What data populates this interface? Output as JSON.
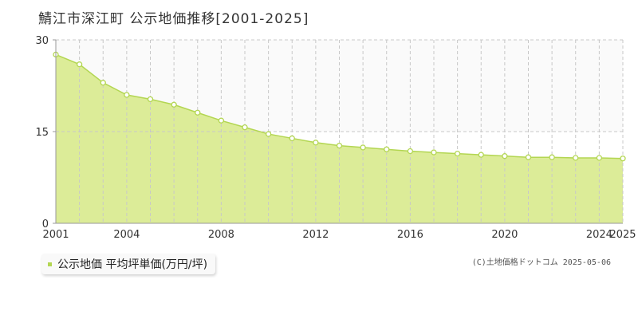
{
  "chart_title": "鯖江市深江町 公示地価推移[2001-2025]",
  "legend_label": "公示地価 平均坪単価(万円/坪)",
  "credit": "(C)土地価格ドットコム 2025-05-06",
  "colors": {
    "area_fill": "#dcec98",
    "line": "#b3d652",
    "marker_fill": "#ffffff",
    "marker_stroke": "#b3d652",
    "legend_marker": "#b3d652",
    "plot_bg": "#ffffff",
    "upper_band": "#fafafa",
    "grid": "#c8c8c8",
    "axis": "#999999",
    "tick_text": "#333333"
  },
  "chart_data": {
    "type": "area",
    "title": "鯖江市深江町 公示地価推移[2001-2025]",
    "xlabel": "",
    "ylabel": "",
    "x_range": [
      2001,
      2025
    ],
    "ylim": [
      0,
      30
    ],
    "grid": true,
    "y_ticks": [
      0,
      15,
      30
    ],
    "x_tick_labels": [
      "2001",
      "2004",
      "2008",
      "2012",
      "2016",
      "2020",
      "2024",
      "2025"
    ],
    "legend_position": "bottom-left",
    "series": [
      {
        "name": "公示地価 平均坪単価(万円/坪)",
        "x": [
          2001,
          2002,
          2003,
          2004,
          2005,
          2006,
          2007,
          2008,
          2009,
          2010,
          2011,
          2012,
          2013,
          2014,
          2015,
          2016,
          2017,
          2018,
          2019,
          2020,
          2021,
          2022,
          2023,
          2024,
          2025
        ],
        "values": [
          27.6,
          26.0,
          23.0,
          21.0,
          20.3,
          19.4,
          18.1,
          16.8,
          15.7,
          14.6,
          13.9,
          13.2,
          12.7,
          12.4,
          12.1,
          11.8,
          11.6,
          11.4,
          11.2,
          11.0,
          10.8,
          10.8,
          10.7,
          10.7,
          10.6
        ]
      }
    ]
  }
}
